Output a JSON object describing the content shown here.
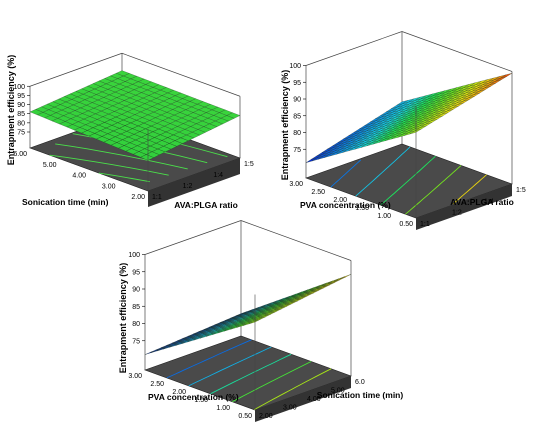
{
  "chart_data": [
    {
      "type": "surface",
      "id": "p1",
      "xlabel": "AVA:PLGA ratio",
      "ylabel": "Sonication time (min)",
      "zlabel": "Entrapment efficiency (%)",
      "x_ticks": [
        "1:1",
        "1:2",
        "1:4",
        "1:5"
      ],
      "y_ticks": [
        "2.00",
        "3.00",
        "4.00",
        "5.00",
        "6.00"
      ],
      "z_ticks": [
        "75",
        "80",
        "85",
        "90",
        "95",
        "100"
      ],
      "x_range": [
        1,
        5
      ],
      "y_range": [
        2,
        6
      ],
      "zlim": [
        75,
        100
      ],
      "corners": {
        "xmin_ymin": 83.0,
        "xmax_ymin": 89.5,
        "xmin_ymax": 86.0,
        "xmax_ymax": 90.5
      },
      "grid": [
        16,
        16
      ]
    },
    {
      "type": "surface",
      "id": "p2",
      "xlabel": "AVA:PLGA ratio",
      "ylabel": "PVA concentration (%)",
      "zlabel": "Entrapment efficiency (%)",
      "x_ticks": [
        "1:1",
        "1:2",
        "1:4",
        "1:5"
      ],
      "y_ticks": [
        "0.50",
        "1.00",
        "1.50",
        "2.00",
        "2.50",
        "3.00"
      ],
      "z_ticks": [
        "75",
        "80",
        "85",
        "90",
        "95",
        "100"
      ],
      "x_range": [
        1,
        5
      ],
      "y_range": [
        0.5,
        3.0
      ],
      "zlim": [
        70,
        100
      ],
      "corners": {
        "xmin_ymin": 92.0,
        "xmax_ymin": 99.5,
        "xmin_ymax": 71.0,
        "xmax_ymax": 79.0
      },
      "grid": [
        18,
        18
      ]
    },
    {
      "type": "surface",
      "id": "p3",
      "xlabel": "Sonication time (min)",
      "ylabel": "PVA concentration (%)",
      "zlabel": "Entrapment efficiency (%)",
      "x_ticks": [
        "2.00",
        "3.00",
        "4.00",
        "5.00",
        "6.0"
      ],
      "y_ticks": [
        "0.50",
        "1.00",
        "1.50",
        "2.00",
        "2.50",
        "3.00"
      ],
      "z_ticks": [
        "75",
        "80",
        "85",
        "90",
        "95",
        "100"
      ],
      "x_range": [
        2,
        6
      ],
      "y_range": [
        0.5,
        3.0
      ],
      "zlim": [
        70,
        100
      ],
      "corners": {
        "xmin_ymin": 92.0,
        "xmax_ymin": 96.0,
        "xmin_ymax": 71.0,
        "xmax_ymax": 73.0
      },
      "grid": [
        18,
        18
      ]
    }
  ]
}
